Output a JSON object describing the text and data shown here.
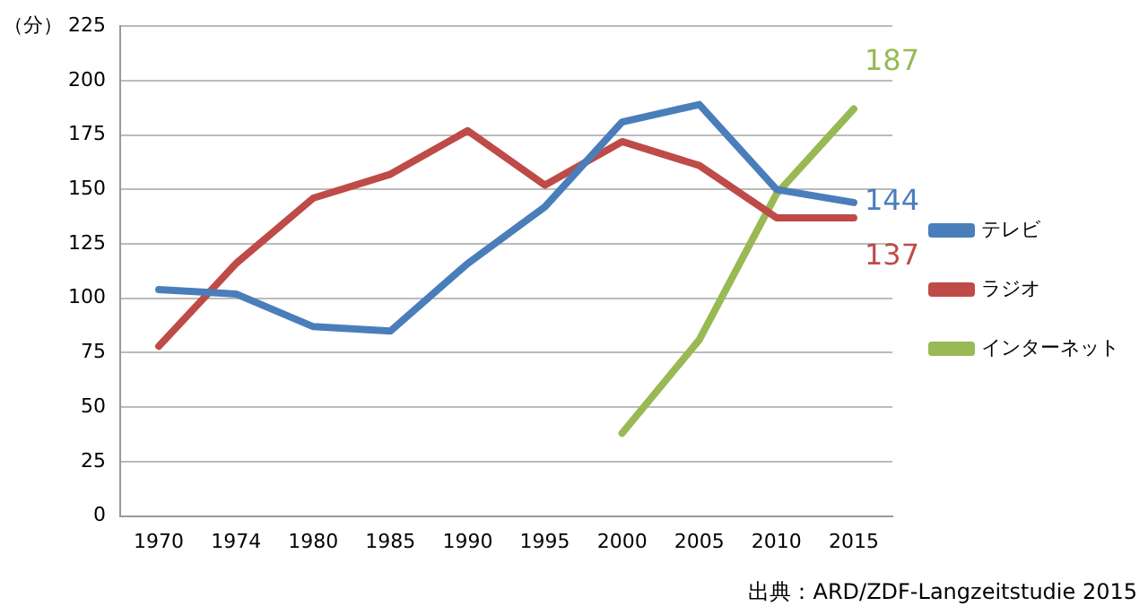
{
  "chart_data": {
    "type": "line",
    "ylabel": "（分）",
    "categories": [
      "1970",
      "1974",
      "1980",
      "1985",
      "1990",
      "1995",
      "2000",
      "2005",
      "2010",
      "2015"
    ],
    "ylim": [
      0,
      225
    ],
    "yticks": [
      0,
      25,
      50,
      75,
      100,
      125,
      150,
      175,
      200,
      225
    ],
    "grid": "y",
    "legend": "right",
    "marker": "none",
    "line_style": "solid",
    "series": [
      {
        "name": "テレビ",
        "color": "#4a7ebb",
        "values": [
          104,
          102,
          87,
          85,
          116,
          142,
          181,
          189,
          150,
          144
        ],
        "value_labels": [
          null,
          null,
          null,
          null,
          null,
          null,
          null,
          null,
          null,
          "144"
        ]
      },
      {
        "name": "ラジオ",
        "color": "#be4b48",
        "values": [
          78,
          116,
          146,
          157,
          177,
          152,
          172,
          161,
          137,
          137
        ],
        "value_labels": [
          null,
          null,
          null,
          null,
          null,
          null,
          null,
          null,
          null,
          "137"
        ]
      },
      {
        "name": "インターネット",
        "color": "#98b954",
        "values": [
          null,
          null,
          null,
          null,
          null,
          null,
          38,
          81,
          148,
          187
        ],
        "value_labels": [
          null,
          null,
          null,
          null,
          null,
          null,
          null,
          null,
          null,
          "187"
        ]
      }
    ],
    "annotations": [
      "出典：ARD/ZDF-Langzeitstudie 2015"
    ]
  }
}
